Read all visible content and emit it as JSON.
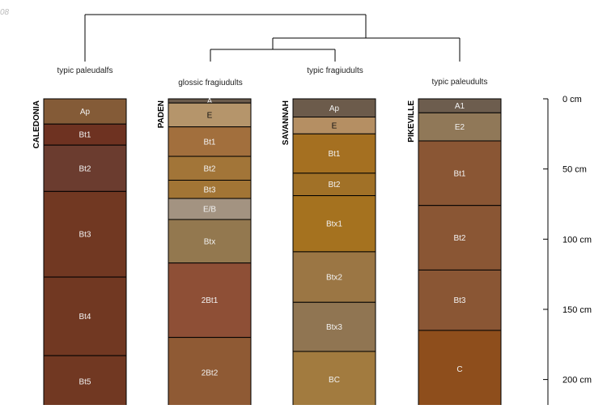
{
  "corner_label": "08",
  "depth_unit": "cm",
  "depth_max": 220,
  "depth_ticks": [
    0,
    50,
    100,
    150,
    200
  ],
  "profiles": [
    {
      "name": "CALEDONIA",
      "taxon": "typic paleudalfs",
      "horizons": [
        {
          "name": "Ap",
          "top": 0,
          "bottom": 18,
          "color": "#845b37",
          "label_color": "#f2f2f2"
        },
        {
          "name": "Bt1",
          "top": 18,
          "bottom": 33,
          "color": "#6e3221",
          "label_color": "#f2f2f2"
        },
        {
          "name": "Bt2",
          "top": 33,
          "bottom": 66,
          "color": "#6b3c2f",
          "label_color": "#f2f2f2"
        },
        {
          "name": "Bt3",
          "top": 66,
          "bottom": 127,
          "color": "#713822",
          "label_color": "#f2f2f2"
        },
        {
          "name": "Bt4",
          "top": 127,
          "bottom": 183,
          "color": "#713822",
          "label_color": "#f2f2f2"
        },
        {
          "name": "Bt5",
          "top": 183,
          "bottom": 220,
          "color": "#713822",
          "label_color": "#f2f2f2"
        }
      ]
    },
    {
      "name": "PADEN",
      "taxon": "glossic fragiudults",
      "horizons": [
        {
          "name": "A",
          "top": 0,
          "bottom": 3,
          "color": "#6b5b4c",
          "label_color": "#f2f2f2"
        },
        {
          "name": "E",
          "top": 3,
          "bottom": 20,
          "color": "#b5956b",
          "label_color": "#111111"
        },
        {
          "name": "Bt1",
          "top": 20,
          "bottom": 41,
          "color": "#a26f3d",
          "label_color": "#f2f2f2"
        },
        {
          "name": "Bt2",
          "top": 41,
          "bottom": 58,
          "color": "#a27538",
          "label_color": "#f2f2f2"
        },
        {
          "name": "Bt3",
          "top": 58,
          "bottom": 71,
          "color": "#a27535",
          "label_color": "#f2f2f2"
        },
        {
          "name": "E/B",
          "top": 71,
          "bottom": 86,
          "color": "#a39381",
          "label_color": "#f2f2f2"
        },
        {
          "name": "Btx",
          "top": 86,
          "bottom": 117,
          "color": "#93784f",
          "label_color": "#f2f2f2"
        },
        {
          "name": "2Bt1",
          "top": 117,
          "bottom": 170,
          "color": "#8e4f36",
          "label_color": "#f2f2f2"
        },
        {
          "name": "2Bt2",
          "top": 170,
          "bottom": 220,
          "color": "#8f5a34",
          "label_color": "#f2f2f2"
        }
      ]
    },
    {
      "name": "SAVANNAH",
      "taxon": "typic fragiudults",
      "horizons": [
        {
          "name": "Ap",
          "top": 0,
          "bottom": 13,
          "color": "#6c5b4b",
          "label_color": "#f2f2f2"
        },
        {
          "name": "E",
          "top": 13,
          "bottom": 25,
          "color": "#b58f63",
          "label_color": "#111111"
        },
        {
          "name": "Bt1",
          "top": 25,
          "bottom": 53,
          "color": "#a57021",
          "label_color": "#f2f2f2"
        },
        {
          "name": "Bt2",
          "top": 53,
          "bottom": 69,
          "color": "#a17127",
          "label_color": "#f2f2f2"
        },
        {
          "name": "Btx1",
          "top": 69,
          "bottom": 109,
          "color": "#a5721f",
          "label_color": "#f2f2f2"
        },
        {
          "name": "Btx2",
          "top": 109,
          "bottom": 145,
          "color": "#9b7644",
          "label_color": "#f2f2f2"
        },
        {
          "name": "Btx3",
          "top": 145,
          "bottom": 180,
          "color": "#907552",
          "label_color": "#f2f2f2"
        },
        {
          "name": "BC",
          "top": 180,
          "bottom": 220,
          "color": "#a27b3f",
          "label_color": "#f2f2f2"
        }
      ]
    },
    {
      "name": "PIKEVILLE",
      "taxon": "typic paleudults",
      "horizons": [
        {
          "name": "A1",
          "top": 0,
          "bottom": 10,
          "color": "#6d5d4e",
          "label_color": "#f2f2f2"
        },
        {
          "name": "E2",
          "top": 10,
          "bottom": 30,
          "color": "#907858",
          "label_color": "#f2f2f2"
        },
        {
          "name": "Bt1",
          "top": 30,
          "bottom": 76,
          "color": "#8a5634",
          "label_color": "#f2f2f2"
        },
        {
          "name": "Bt2",
          "top": 76,
          "bottom": 122,
          "color": "#8a5634",
          "label_color": "#f2f2f2"
        },
        {
          "name": "Bt3",
          "top": 122,
          "bottom": 165,
          "color": "#8a5634",
          "label_color": "#f2f2f2"
        },
        {
          "name": "C",
          "top": 165,
          "bottom": 220,
          "color": "#8e4e1c",
          "label_color": "#f2f2f2"
        }
      ]
    }
  ]
}
